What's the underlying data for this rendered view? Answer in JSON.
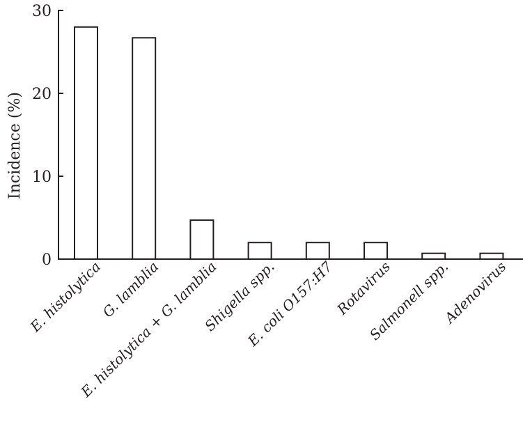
{
  "chart_data": {
    "type": "bar",
    "title": "",
    "xlabel": "",
    "ylabel": "Incidence (%)",
    "ylim": [
      0,
      30
    ],
    "yticks": [
      "0",
      "10",
      "20",
      "30"
    ],
    "grid": false,
    "legend": "none",
    "categories": [
      "E. histolytica",
      "G. lamblia",
      "E. histolytica + G. lamblia",
      "Shigella spp.",
      "E. coli O157:H7",
      "Rotavirus",
      "Salmonell spp.",
      "Adenovirus"
    ],
    "values": [
      28.0,
      26.7,
      4.7,
      2.0,
      2.0,
      2.0,
      0.7,
      0.7
    ],
    "colors": {
      "bar_fill": "#ffffff",
      "bar_stroke": "#231f20",
      "axis": "#231f20"
    }
  }
}
